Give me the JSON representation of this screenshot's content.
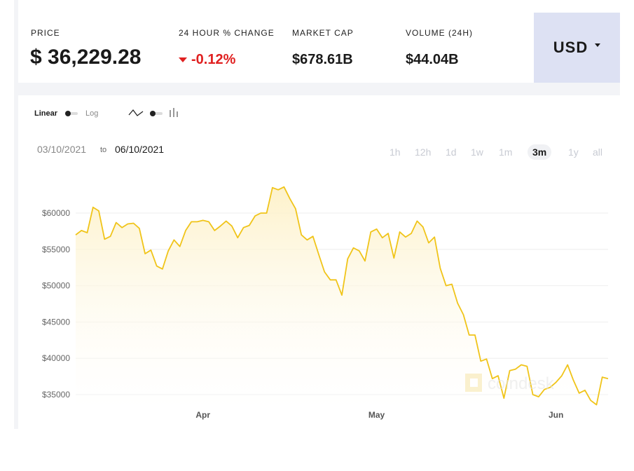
{
  "stats": {
    "price": {
      "label": "PRICE",
      "value": "$ 36,229.28"
    },
    "change": {
      "label": "24 HOUR % CHANGE",
      "value": "-0.12%"
    },
    "market_cap": {
      "label": "MARKET CAP",
      "value": "$678.61B"
    },
    "volume": {
      "label": "VOLUME (24H)",
      "value": "$44.04B"
    }
  },
  "currency": {
    "selected": "USD"
  },
  "scale_toggle": {
    "linear": "Linear",
    "log": "Log"
  },
  "date_range": {
    "from": "03/10/2021",
    "separator": "to",
    "to": "06/10/2021"
  },
  "time_ranges": [
    "1h",
    "12h",
    "1d",
    "1w",
    "1m",
    "3m",
    "1y",
    "all"
  ],
  "active_range": "3m",
  "watermark": "coindesk",
  "colors": {
    "line": "#f0c419",
    "fill_top": "#fdf1c8",
    "negative": "#e02020",
    "currency_bg": "#dde1f3"
  },
  "chart_data": {
    "type": "area",
    "y_ticks": [
      "$60000",
      "$55000",
      "$50000",
      "$45000",
      "$40000",
      "$35000"
    ],
    "x_ticks": [
      "Apr",
      "May",
      "Jun"
    ],
    "ylim": [
      33000,
      64000
    ],
    "grid": true,
    "x": [
      "2021-03-10",
      "2021-03-11",
      "2021-03-12",
      "2021-03-13",
      "2021-03-14",
      "2021-03-15",
      "2021-03-16",
      "2021-03-17",
      "2021-03-18",
      "2021-03-19",
      "2021-03-20",
      "2021-03-21",
      "2021-03-22",
      "2021-03-23",
      "2021-03-24",
      "2021-03-25",
      "2021-03-26",
      "2021-03-27",
      "2021-03-28",
      "2021-03-29",
      "2021-03-30",
      "2021-03-31",
      "2021-04-01",
      "2021-04-02",
      "2021-04-03",
      "2021-04-04",
      "2021-04-05",
      "2021-04-06",
      "2021-04-07",
      "2021-04-08",
      "2021-04-09",
      "2021-04-10",
      "2021-04-11",
      "2021-04-12",
      "2021-04-13",
      "2021-04-14",
      "2021-04-15",
      "2021-04-16",
      "2021-04-17",
      "2021-04-18",
      "2021-04-19",
      "2021-04-20",
      "2021-04-21",
      "2021-04-22",
      "2021-04-23",
      "2021-04-24",
      "2021-04-25",
      "2021-04-26",
      "2021-04-27",
      "2021-04-28",
      "2021-04-29",
      "2021-04-30",
      "2021-05-01",
      "2021-05-02",
      "2021-05-03",
      "2021-05-04",
      "2021-05-05",
      "2021-05-06",
      "2021-05-07",
      "2021-05-08",
      "2021-05-09",
      "2021-05-10",
      "2021-05-11",
      "2021-05-12",
      "2021-05-13",
      "2021-05-14",
      "2021-05-15",
      "2021-05-16",
      "2021-05-17",
      "2021-05-18",
      "2021-05-19",
      "2021-05-20",
      "2021-05-21",
      "2021-05-22",
      "2021-05-23",
      "2021-05-24",
      "2021-05-25",
      "2021-05-26",
      "2021-05-27",
      "2021-05-28",
      "2021-05-29",
      "2021-05-30",
      "2021-05-31",
      "2021-06-01",
      "2021-06-02",
      "2021-06-03",
      "2021-06-04",
      "2021-06-05",
      "2021-06-06",
      "2021-06-07",
      "2021-06-08",
      "2021-06-09",
      "2021-06-10"
    ],
    "series": [
      {
        "values": [
          57000,
          57600,
          57300,
          60800,
          60300,
          56400,
          56800,
          58700,
          58000,
          58500,
          58600,
          57900,
          54400,
          54900,
          52700,
          52300,
          54800,
          56300,
          55400,
          57600,
          58800,
          58800,
          59000,
          58800,
          57600,
          58200,
          58900,
          58200,
          56600,
          58000,
          58300,
          59600,
          60000,
          60000,
          63500,
          63200,
          63600,
          62000,
          60600,
          57000,
          56300,
          56800,
          54300,
          51900,
          50800,
          50800,
          48700,
          53700,
          55200,
          54800,
          53400,
          57400,
          57800,
          56600,
          57200,
          53800,
          57400,
          56700,
          57200,
          58900,
          58100,
          55900,
          56700,
          52400,
          50000,
          50200,
          47600,
          46000,
          43200,
          43200,
          39600,
          39900,
          37200,
          37600,
          34500,
          38300,
          38500,
          39100,
          38900,
          35000,
          34700,
          35700,
          36000,
          36700,
          37600,
          39100,
          37000,
          35200,
          35600,
          34200,
          33600,
          37400,
          37200
        ]
      }
    ]
  }
}
